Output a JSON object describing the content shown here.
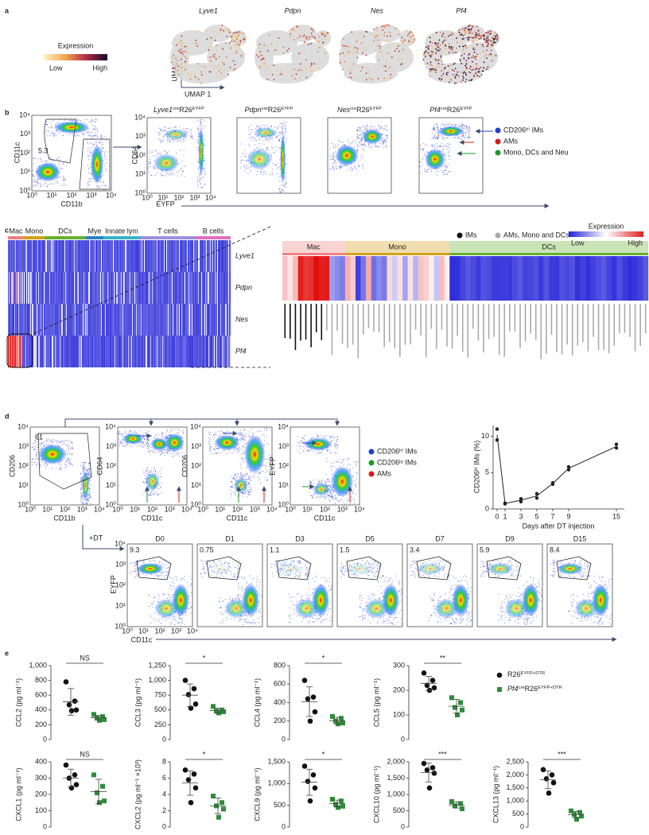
{
  "panel_labels": [
    "a",
    "b",
    "c",
    "d",
    "e"
  ],
  "flow_ticks": [
    "10⁰",
    "10¹",
    "10²",
    "10³",
    "10⁴"
  ],
  "a": {
    "legend_title": "Expression",
    "low": "Low",
    "high": "High",
    "umap_y": "UMAP 2",
    "umap_x": "UMAP 1",
    "genes": [
      "Lyve1",
      "Pdpn",
      "Nes",
      "Pf4"
    ]
  },
  "b": {
    "gate_value": "5.3",
    "y_label": "CD11c",
    "x_label": "CD11b",
    "plots": [
      {
        "gene": "Lyve1",
        "sup1": "cre",
        "base": "R26",
        "sup2": "EYFP"
      },
      {
        "gene": "Pdpn",
        "sup1": "cre",
        "base": "R26",
        "sup2": "EYFP"
      },
      {
        "gene": "Nes",
        "sup1": "cre",
        "base": "R26",
        "sup2": "EYFP"
      },
      {
        "gene": "Pf4",
        "sup1": "cre",
        "base": "R26",
        "sup2": "EYFP"
      }
    ],
    "plot_y": "CD64",
    "plot_x": "EYFP",
    "legend": [
      {
        "name": "CD206ʰⁱ IMs",
        "color": "#1f3fcf"
      },
      {
        "name": "AMs",
        "color": "#d7191c"
      },
      {
        "name": "Mono, DCs and Neu",
        "color": "#1a9a2a"
      }
    ]
  },
  "c": {
    "groups": [
      {
        "name": "Mac",
        "color": "#f08080"
      },
      {
        "name": "Mono",
        "color": "#d4a017"
      },
      {
        "name": "DCs",
        "color": "#66b032"
      },
      {
        "name": "Mye",
        "color": "#2a7fc9"
      },
      {
        "name": "Innate lym",
        "color": "#34b4c8"
      },
      {
        "name": "T cells",
        "color": "#9b8fe0"
      },
      {
        "name": "B cells",
        "color": "#e070c0"
      }
    ],
    "genes": [
      "Lyve1",
      "Pdpn",
      "Nes",
      "Pf4"
    ],
    "legend_title": "Expression",
    "low": "Low",
    "high": "High",
    "legend": [
      {
        "name": "IMs",
        "color": "#111111"
      },
      {
        "name": "AMs, Mono and DCs",
        "color": "#aaaaaa"
      }
    ],
    "detail_groups": [
      {
        "name": "Mac",
        "color": "#f08080"
      },
      {
        "name": "Mono",
        "color": "#d4a017"
      },
      {
        "name": "DCs",
        "color": "#66b032"
      }
    ]
  },
  "d": {
    "gate_value": "61",
    "plots": [
      {
        "y": "CD206",
        "x": "CD11b"
      },
      {
        "y": "CD64",
        "x": "CD11c"
      },
      {
        "y": "CD206",
        "x": "CD11c"
      },
      {
        "y": "EYFP",
        "x": "CD11c"
      }
    ],
    "legend": [
      {
        "name": "CD206ʰⁱ IMs",
        "color": "#1f3fcf"
      },
      {
        "name": "CD206ˡᵒ IMs",
        "color": "#1a9a2a"
      },
      {
        "name": "AMs",
        "color": "#d7191c"
      }
    ],
    "treatment": "+DT",
    "days": [
      {
        "label": "D0",
        "value": "9.3"
      },
      {
        "label": "D1",
        "value": "0.75"
      },
      {
        "label": "D3",
        "value": "1.1"
      },
      {
        "label": "D5",
        "value": "1.5"
      },
      {
        "label": "D7",
        "value": "3.4"
      },
      {
        "label": "D9",
        "value": "5.9"
      },
      {
        "label": "D15",
        "value": "8.4"
      }
    ],
    "day_y": "EYFP",
    "day_x": "CD11c"
  },
  "e": {
    "legend": [
      {
        "base": "R26",
        "sup": "EYFP+DTR",
        "color": "#111111",
        "marker": "circle"
      },
      {
        "gene": "Pf4",
        "sup1": "cre",
        "base": "R26",
        "sup2": "EYFP+DTR",
        "color": "#2e8b3a",
        "marker": "square"
      }
    ]
  },
  "chart_data": [
    {
      "type": "line",
      "ylabel": "CD206ʰⁱ IMs (%)",
      "xlabel": "Days after DT injection",
      "color": "#222222",
      "x": [
        0,
        0,
        1,
        1,
        3,
        3,
        5,
        5,
        7,
        7,
        9,
        9,
        15,
        15
      ],
      "values": [
        11,
        9.5,
        0.8,
        0.7,
        1.4,
        1.0,
        2.1,
        1.5,
        3.6,
        3.4,
        5.8,
        5.4,
        8.9,
        8.4
      ],
      "line_x": [
        0,
        1,
        3,
        5,
        7,
        9,
        15
      ],
      "line_values": [
        10.2,
        0.75,
        1.2,
        1.8,
        3.5,
        5.6,
        8.6
      ],
      "xlim": [
        -0.5,
        16
      ],
      "ylim": [
        0,
        11.5
      ],
      "xticks": [
        0,
        1,
        3,
        5,
        7,
        9,
        15
      ],
      "yticks": [
        0,
        5,
        10
      ]
    },
    {
      "type": "strip",
      "ylabel": "CCL2 (pg ml⁻¹)",
      "ylim": [
        0,
        1000
      ],
      "yticks": [
        0,
        200,
        400,
        600,
        800,
        {
          "value": 1000,
          "label": "1,000"
        }
      ],
      "significance": "NS",
      "series": [
        {
          "color": "#111111",
          "marker": "circle",
          "values": [
            780,
            520,
            470,
            400,
            390
          ],
          "mean": 510,
          "sd": 180
        },
        {
          "color": "#2e8b3a",
          "marker": "square",
          "values": [
            340,
            310,
            290,
            270,
            260
          ],
          "mean": 295,
          "sd": 30
        }
      ]
    },
    {
      "type": "strip",
      "ylabel": "CCL3 (pg ml⁻¹)",
      "ylim": [
        0,
        1250
      ],
      "yticks": [
        0,
        250,
        500,
        750,
        {
          "value": 1000,
          "label": "1,000"
        },
        {
          "value": 1250,
          "label": "1,250"
        }
      ],
      "significance": "*",
      "series": [
        {
          "color": "#111111",
          "marker": "circle",
          "values": [
            1000,
            860,
            760,
            600,
            530
          ],
          "mean": 750,
          "sd": 190
        },
        {
          "color": "#2e8b3a",
          "marker": "square",
          "values": [
            560,
            500,
            480,
            470,
            450
          ],
          "mean": 490,
          "sd": 40
        }
      ]
    },
    {
      "type": "strip",
      "ylabel": "CCL4 (pg ml⁻¹)",
      "ylim": [
        0,
        800
      ],
      "yticks": [
        0,
        200,
        400,
        600,
        800
      ],
      "significance": "*",
      "series": [
        {
          "color": "#111111",
          "marker": "circle",
          "values": [
            640,
            460,
            440,
            300,
            200
          ],
          "mean": 410,
          "sd": 160
        },
        {
          "color": "#2e8b3a",
          "marker": "square",
          "values": [
            250,
            230,
            200,
            180,
            170
          ],
          "mean": 205,
          "sd": 35
        }
      ]
    },
    {
      "type": "strip",
      "ylabel": "CCL5 (pg ml⁻¹)",
      "ylim": [
        0,
        300
      ],
      "yticks": [
        0,
        100,
        200,
        300
      ],
      "significance": "**",
      "series": [
        {
          "color": "#111111",
          "marker": "circle",
          "values": [
            270,
            240,
            220,
            210,
            200
          ],
          "mean": 228,
          "sd": 28
        },
        {
          "color": "#2e8b3a",
          "marker": "square",
          "values": [
            170,
            150,
            130,
            120,
            100
          ],
          "mean": 135,
          "sd": 28
        }
      ]
    },
    {
      "type": "strip",
      "ylabel": "CXCL1 (pg ml⁻¹)",
      "ylim": [
        0,
        400
      ],
      "yticks": [
        0,
        100,
        200,
        300,
        400
      ],
      "significance": "NS",
      "series": [
        {
          "color": "#111111",
          "marker": "circle",
          "values": [
            380,
            320,
            300,
            260,
            240
          ],
          "mean": 300,
          "sd": 55
        },
        {
          "color": "#2e8b3a",
          "marker": "square",
          "values": [
            320,
            250,
            210,
            160,
            150
          ],
          "mean": 218,
          "sd": 75
        }
      ]
    },
    {
      "type": "strip",
      "ylabel": "CXCL2 (pg ml⁻¹ ×10³)",
      "ylim": [
        0,
        8
      ],
      "yticks": [
        0,
        2,
        4,
        6,
        8
      ],
      "significance": "*",
      "series": [
        {
          "color": "#111111",
          "marker": "circle",
          "values": [
            7,
            6.5,
            5.8,
            4.8,
            3.0
          ],
          "mean": 5.4,
          "sd": 1.5
        },
        {
          "color": "#2e8b3a",
          "marker": "square",
          "values": [
            3.8,
            3.0,
            2.6,
            2.2,
            1.2
          ],
          "mean": 2.6,
          "sd": 0.95
        }
      ]
    },
    {
      "type": "strip",
      "ylabel": "CXCL9 (pg ml⁻¹)",
      "ylim": [
        0,
        1500
      ],
      "yticks": [
        0,
        500,
        {
          "value": 1000,
          "label": "1,000"
        },
        {
          "value": 1500,
          "label": "1,500"
        }
      ],
      "significance": "*",
      "series": [
        {
          "color": "#111111",
          "marker": "circle",
          "values": [
            1400,
            1200,
            1050,
            900,
            600
          ],
          "mean": 1030,
          "sd": 300
        },
        {
          "color": "#2e8b3a",
          "marker": "square",
          "values": [
            640,
            600,
            520,
            480,
            450
          ],
          "mean": 540,
          "sd": 80
        }
      ]
    },
    {
      "type": "strip",
      "ylabel": "CXCL10 (pg ml⁻¹)",
      "ylim": [
        0,
        2000
      ],
      "yticks": [
        0,
        500,
        {
          "value": 1000,
          "label": "1,000"
        },
        {
          "value": 1500,
          "label": "1,500"
        },
        {
          "value": 2000,
          "label": "2,000"
        }
      ],
      "significance": "***",
      "series": [
        {
          "color": "#111111",
          "marker": "circle",
          "values": [
            1950,
            1820,
            1750,
            1650,
            1200
          ],
          "mean": 1674,
          "sd": 290
        },
        {
          "color": "#2e8b3a",
          "marker": "square",
          "values": [
            780,
            720,
            650,
            560
          ],
          "mean": 678,
          "sd": 95
        }
      ]
    },
    {
      "type": "strip",
      "ylabel": "CXCL13 (pg ml⁻¹)",
      "ylim": [
        0,
        2500
      ],
      "yticks": [
        0,
        500,
        {
          "value": 1000,
          "label": "1,000"
        },
        {
          "value": 1500,
          "label": "1,500"
        },
        {
          "value": 2000,
          "label": "2,000"
        },
        {
          "value": 2500,
          "label": "2,500"
        }
      ],
      "significance": "***",
      "series": [
        {
          "color": "#111111",
          "marker": "circle",
          "values": [
            2200,
            2000,
            1850,
            1700,
            1300
          ],
          "mean": 1810,
          "sd": 340
        },
        {
          "color": "#2e8b3a",
          "marker": "square",
          "values": [
            620,
            560,
            480,
            420,
            300
          ],
          "mean": 476,
          "sd": 125
        }
      ]
    }
  ]
}
